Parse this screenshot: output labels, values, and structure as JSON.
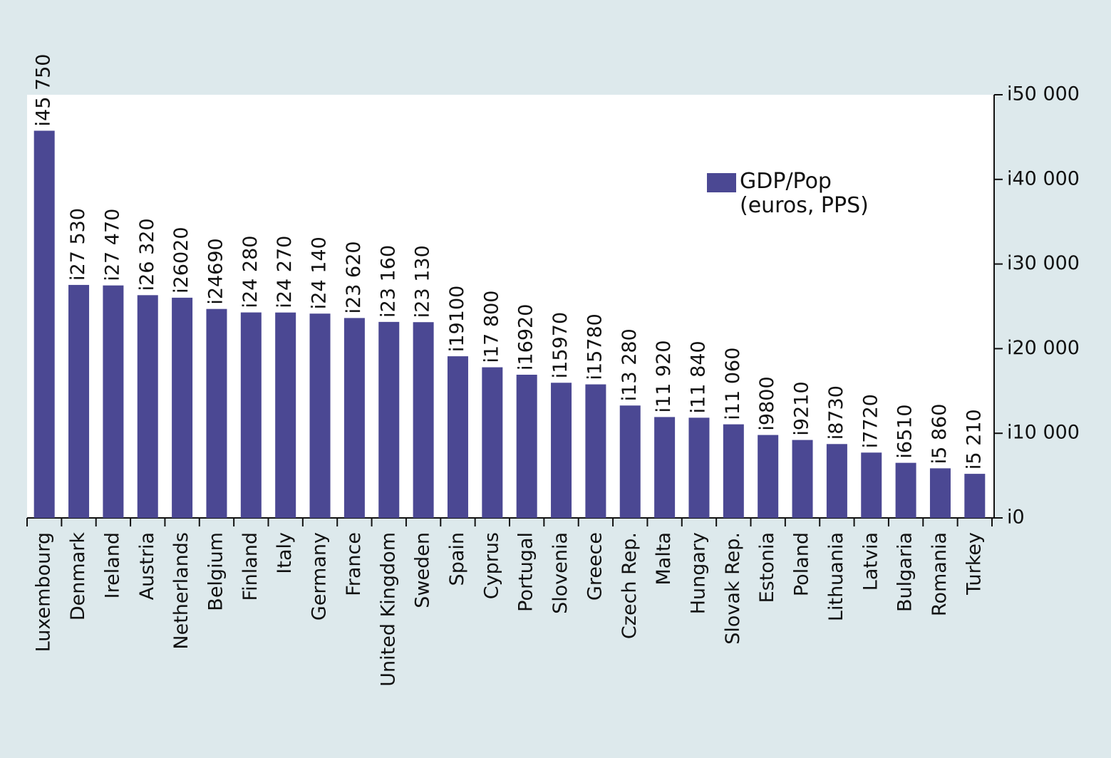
{
  "chart_data": {
    "type": "bar",
    "categories": [
      "Luxembourg",
      "Denmark",
      "Ireland",
      "Austria",
      "Netherlands",
      "Belgium",
      "Finland",
      "Italy",
      "Germany",
      "France",
      "United Kingdom",
      "Sweden",
      "Spain",
      "Cyprus",
      "Portugal",
      "Slovenia",
      "Greece",
      "Czech Rep.",
      "Malta",
      "Hungary",
      "Slovak Rep.",
      "Estonia",
      "Poland",
      "Lithuania",
      "Latvia",
      "Bulgaria",
      "Romania",
      "Turkey"
    ],
    "series": [
      {
        "name": "GDP/Pop (euros, PPS)",
        "color": "#4b4893",
        "values": [
          45750,
          27530,
          27470,
          26320,
          26020,
          24690,
          24280,
          24270,
          24140,
          23620,
          23160,
          23130,
          19100,
          17800,
          16920,
          15970,
          15780,
          13280,
          11920,
          11840,
          11060,
          9800,
          9210,
          8730,
          7720,
          6510,
          5860,
          5210
        ],
        "value_labels": [
          "i45 750",
          "i27 530",
          "i27 470",
          "i26 320",
          "i26020",
          "i24690",
          "i24 280",
          "i24 270",
          "i24 140",
          "i23 620",
          "i23 160",
          "i23 130",
          "i19100",
          "i17 800",
          "i16920",
          "i15970",
          "i15780",
          "i13 280",
          "i11 920",
          "i11 840",
          "i11 060",
          "i9800",
          "i9210",
          "i8730",
          "i7720",
          "i6510",
          "i5 860",
          "i5 210"
        ]
      }
    ],
    "ylim": [
      0,
      50000
    ],
    "yticks": [
      {
        "value": 0,
        "label": "i0"
      },
      {
        "value": 10000,
        "label": "i10 000"
      },
      {
        "value": 20000,
        "label": "i20 000"
      },
      {
        "value": 30000,
        "label": "i30 000"
      },
      {
        "value": 40000,
        "label": "i40 000"
      },
      {
        "value": 50000,
        "label": "i50 000"
      }
    ],
    "legend": "upper right"
  }
}
